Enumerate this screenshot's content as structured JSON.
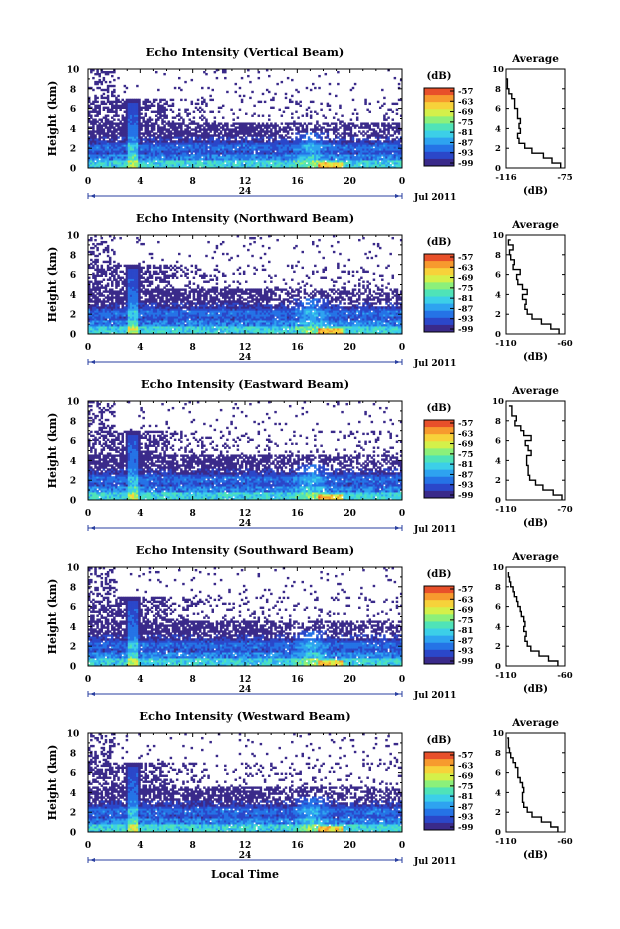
{
  "chart_data": [
    {
      "type": "heatmap",
      "title": "Echo Intensity (Vertical Beam)",
      "ylabel": "Height (km)",
      "y_ticks": [
        "0",
        "2",
        "4",
        "6",
        "8",
        "10"
      ],
      "x_ticks": [
        "0",
        "4",
        "8",
        "12",
        "16",
        "20",
        "0"
      ],
      "date_label": "24",
      "month_label": "Jul 2011",
      "ylim": [
        0,
        10
      ],
      "xlim": [
        0,
        24
      ],
      "colorbar": {
        "label": "(dB)",
        "ticks": [
          "-57",
          "-63",
          "-69",
          "-75",
          "-81",
          "-87",
          "-93",
          "-99"
        ]
      },
      "profile": {
        "title": "Average",
        "xlabel": "(dB)",
        "x_ticks": [
          "-116",
          "-75"
        ],
        "xlim": [
          -116,
          -75
        ],
        "y_ticks": [
          "0",
          "2",
          "4",
          "6",
          "8",
          "10"
        ],
        "heights": [
          0,
          0.5,
          1,
          1.5,
          2,
          2.5,
          3,
          3.5,
          4,
          4.5,
          5,
          5.5,
          6,
          6.5,
          7,
          7.5,
          8,
          8.5,
          9
        ],
        "values": [
          -78,
          -84,
          -90,
          -98,
          -103,
          -107,
          -108,
          -106,
          -107,
          -106,
          -108,
          -108,
          -110,
          -110,
          -112,
          -114,
          -115,
          -115,
          -116
        ]
      }
    },
    {
      "type": "heatmap",
      "title": "Echo Intensity (Northward Beam)",
      "ylabel": "Height (km)",
      "y_ticks": [
        "0",
        "2",
        "4",
        "6",
        "8",
        "10"
      ],
      "x_ticks": [
        "0",
        "4",
        "8",
        "12",
        "16",
        "20",
        "0"
      ],
      "date_label": "24",
      "month_label": "Jul 2011",
      "ylim": [
        0,
        10
      ],
      "xlim": [
        0,
        24
      ],
      "colorbar": {
        "label": "(dB)",
        "ticks": [
          "-57",
          "-63",
          "-69",
          "-75",
          "-81",
          "-87",
          "-93",
          "-99"
        ]
      },
      "profile": {
        "title": "Average",
        "xlabel": "(dB)",
        "x_ticks": [
          "-110",
          "-60"
        ],
        "xlim": [
          -110,
          -60
        ],
        "y_ticks": [
          "0",
          "2",
          "4",
          "6",
          "8",
          "10"
        ],
        "heights": [
          0,
          0.5,
          1,
          1.5,
          2,
          2.5,
          3,
          3.5,
          4,
          4.5,
          5,
          5.5,
          6,
          6.5,
          7,
          7.5,
          8,
          8.5,
          9,
          9.5
        ],
        "values": [
          -65,
          -72,
          -80,
          -88,
          -92,
          -94,
          -93,
          -96,
          -92,
          -96,
          -100,
          -101,
          -98,
          -104,
          -103,
          -106,
          -107,
          -104,
          -108,
          -106
        ]
      }
    },
    {
      "type": "heatmap",
      "title": "Echo Intensity (Eastward Beam)",
      "ylabel": "Height (km)",
      "y_ticks": [
        "0",
        "2",
        "4",
        "6",
        "8",
        "10"
      ],
      "x_ticks": [
        "0",
        "4",
        "8",
        "12",
        "16",
        "20",
        "0"
      ],
      "date_label": "24",
      "month_label": "Jul 2011",
      "ylim": [
        0,
        10
      ],
      "xlim": [
        0,
        24
      ],
      "colorbar": {
        "label": "(dB)",
        "ticks": [
          "-57",
          "-63",
          "-69",
          "-75",
          "-81",
          "-87",
          "-93",
          "-99"
        ]
      },
      "profile": {
        "title": "Average",
        "xlabel": "(dB)",
        "x_ticks": [
          "-110",
          "-70"
        ],
        "xlim": [
          -110,
          -70
        ],
        "y_ticks": [
          "0",
          "2",
          "4",
          "6",
          "8",
          "10"
        ],
        "heights": [
          0,
          0.5,
          1,
          1.5,
          2,
          2.5,
          3,
          3.5,
          4,
          4.5,
          5,
          5.5,
          6,
          6.5,
          7,
          7.5,
          8,
          8.5,
          9,
          9.5
        ],
        "values": [
          -72,
          -78,
          -85,
          -90,
          -94,
          -95,
          -95,
          -96,
          -96,
          -93,
          -95,
          -97,
          -93,
          -98,
          -100,
          -104,
          -103,
          -106,
          -106,
          -108
        ]
      }
    },
    {
      "type": "heatmap",
      "title": "Echo Intensity (Southward Beam)",
      "ylabel": "Height (km)",
      "y_ticks": [
        "0",
        "2",
        "4",
        "6",
        "8",
        "10"
      ],
      "x_ticks": [
        "0",
        "4",
        "8",
        "12",
        "16",
        "20",
        "0"
      ],
      "date_label": "24",
      "month_label": "Jul 2011",
      "ylim": [
        0,
        10
      ],
      "xlim": [
        0,
        24
      ],
      "colorbar": {
        "label": "(dB)",
        "ticks": [
          "-57",
          "-63",
          "-69",
          "-75",
          "-81",
          "-87",
          "-93",
          "-99"
        ]
      },
      "profile": {
        "title": "Average",
        "xlabel": "(dB)",
        "x_ticks": [
          "-110",
          "-60"
        ],
        "xlim": [
          -110,
          -60
        ],
        "y_ticks": [
          "0",
          "2",
          "4",
          "6",
          "8",
          "10"
        ],
        "heights": [
          0,
          0.5,
          1,
          1.5,
          2,
          2.5,
          3,
          3.5,
          4,
          4.5,
          5,
          5.5,
          6,
          6.5,
          7,
          7.5,
          8,
          8.5,
          9,
          9.5
        ],
        "values": [
          -66,
          -74,
          -82,
          -89,
          -92,
          -94,
          -93,
          -95,
          -94,
          -95,
          -97,
          -98,
          -100,
          -101,
          -103,
          -104,
          -106,
          -107,
          -108,
          -108
        ]
      }
    },
    {
      "type": "heatmap",
      "title": "Echo Intensity (Westward Beam)",
      "ylabel": "Height (km)",
      "y_ticks": [
        "0",
        "2",
        "4",
        "6",
        "8",
        "10"
      ],
      "x_ticks": [
        "0",
        "4",
        "8",
        "12",
        "16",
        "20",
        "0"
      ],
      "date_label": "24",
      "month_label": "Jul 2011",
      "ylim": [
        0,
        10
      ],
      "xlim": [
        0,
        24
      ],
      "colorbar": {
        "label": "(dB)",
        "ticks": [
          "-57",
          "-63",
          "-69",
          "-75",
          "-81",
          "-87",
          "-93",
          "-99"
        ]
      },
      "profile": {
        "title": "Average",
        "xlabel": "(dB)",
        "x_ticks": [
          "-110",
          "-60"
        ],
        "xlim": [
          -110,
          -60
        ],
        "y_ticks": [
          "0",
          "2",
          "4",
          "6",
          "8",
          "10"
        ],
        "heights": [
          0,
          0.5,
          1,
          1.5,
          2,
          2.5,
          3,
          3.5,
          4,
          4.5,
          5,
          5.5,
          6,
          6.5,
          7,
          7.5,
          8,
          8.5,
          9,
          9.5
        ],
        "values": [
          -66,
          -72,
          -80,
          -88,
          -92,
          -95,
          -96,
          -96,
          -95,
          -96,
          -98,
          -100,
          -100,
          -102,
          -104,
          -106,
          -107,
          -108,
          -108,
          -109
        ]
      }
    }
  ],
  "footer": {
    "xlabel": "Local Time"
  },
  "colormap": [
    "#3a2a8a",
    "#2b47c9",
    "#2573e6",
    "#2ea3f0",
    "#3ccfe8",
    "#4fe3b8",
    "#8cf07a",
    "#d4f04a",
    "#f7d23a",
    "#f79a2e",
    "#e8502a"
  ],
  "colors": {
    "background": "#ffffff",
    "empty": "#ffffff",
    "line": "#000000"
  }
}
